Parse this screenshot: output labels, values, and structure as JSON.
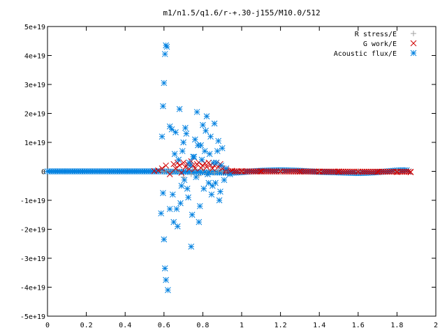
{
  "chart_data": {
    "type": "scatter",
    "title": "m1/n1.5/q1.6/r-+.30-j155/M10.0/512",
    "xlim": [
      0,
      2
    ],
    "ylim": [
      -5e+19,
      5e+19
    ],
    "x_ticks": [
      "0",
      "0.2",
      "0.4",
      "0.6",
      "0.8",
      "1",
      "1.2",
      "1.4",
      "1.6",
      "1.8",
      "2"
    ],
    "x_tick_values": [
      0,
      0.2,
      0.4,
      0.6,
      0.8,
      1.0,
      1.2,
      1.4,
      1.6,
      1.8,
      2.0
    ],
    "y_ticks": [
      "5e+19",
      "4e+19",
      "3e+19",
      "2e+19",
      "1e+19",
      "0",
      "-1e+19",
      "-2e+19",
      "-3e+19",
      "-4e+19",
      "-5e+19"
    ],
    "y_tick_values": [
      5e+19,
      4e+19,
      3e+19,
      2e+19,
      1e+19,
      0,
      -1e+19,
      -2e+19,
      -3e+19,
      -4e+19,
      -5e+19
    ],
    "grid": false,
    "legend_position": "top-right",
    "colors": {
      "r_stress": "#a0a0a0",
      "g_work": "#d00000",
      "acoustic_flux": "#0080e0"
    },
    "series": [
      {
        "name": "R stress/E",
        "marker": "plus",
        "x": [
          0.58,
          0.6,
          0.62,
          0.64,
          0.66,
          0.68,
          0.7,
          0.72,
          0.74,
          0.76,
          0.78,
          0.8,
          0.82,
          0.84,
          0.86,
          0.88,
          0.9,
          0.92,
          1.0,
          1.2,
          1.4,
          1.6,
          1.8
        ],
        "y": [
          1e+17,
          -2e+17,
          3e+17,
          -4e+17,
          5e+17,
          -3e+17,
          -2e+18,
          1e+18,
          -1e+18,
          8e+17,
          -1.5e+18,
          6e+17,
          -8e+17,
          4e+17,
          -5e+17,
          2e+17,
          -1e+17,
          5e+16,
          0,
          0,
          0,
          0,
          0
        ]
      },
      {
        "name": "G work/E",
        "marker": "cross",
        "x": [
          0.55,
          0.57,
          0.59,
          0.61,
          0.63,
          0.65,
          0.66,
          0.67,
          0.68,
          0.69,
          0.7,
          0.71,
          0.72,
          0.73,
          0.74,
          0.75,
          0.76,
          0.77,
          0.78,
          0.79,
          0.8,
          0.81,
          0.82,
          0.83,
          0.84,
          0.85,
          0.86,
          0.87,
          0.88,
          0.89,
          0.9,
          0.92,
          0.95,
          1.0,
          1.1,
          1.2,
          1.3,
          1.4,
          1.5,
          1.6,
          1.7,
          1.8,
          1.87
        ],
        "y": [
          1e+17,
          3e+17,
          1e+18,
          2e+18,
          -1e+18,
          2.5e+18,
          1e+18,
          3e+18,
          2e+18,
          -5e+17,
          3e+18,
          1.5e+18,
          2.5e+18,
          8e+17,
          3.5e+18,
          2e+18,
          1e+18,
          2.5e+18,
          3e+18,
          1.2e+18,
          2e+18,
          2.8e+18,
          1.5e+18,
          3e+18,
          2.2e+18,
          1e+18,
          2e+18,
          3e+18,
          1.5e+18,
          2.5e+18,
          1e+18,
          5e+17,
          2e+17,
          1e+17,
          0,
          -2e+16,
          -5e+16,
          -8e+16,
          -1e+17,
          -1.5e+17,
          -2e+17,
          -2.5e+17,
          -3e+17
        ]
      },
      {
        "name": "Acoustic flux/E",
        "marker": "asterisk",
        "x": [
          0.61,
          0.615,
          0.605,
          0.6,
          0.595,
          0.59,
          0.585,
          0.6,
          0.605,
          0.61,
          0.595,
          0.62,
          0.63,
          0.64,
          0.65,
          0.66,
          0.67,
          0.68,
          0.69,
          0.7,
          0.71,
          0.72,
          0.73,
          0.74,
          0.75,
          0.76,
          0.77,
          0.78,
          0.79,
          0.8,
          0.81,
          0.82,
          0.83,
          0.84,
          0.85,
          0.86,
          0.87,
          0.88,
          0.89,
          0.9,
          0.63,
          0.645,
          0.655,
          0.665,
          0.675,
          0.685,
          0.695,
          0.705,
          0.715,
          0.725,
          0.735,
          0.745,
          0.755,
          0.765,
          0.775,
          0.785,
          0.795,
          0.805,
          0.815,
          0.825,
          0.835,
          0.845,
          0.855,
          0.865,
          0.875,
          0.885,
          0.895,
          0.91,
          0.92,
          0.94
        ],
        "y": [
          4.35e+19,
          4.3e+19,
          4.05e+19,
          3.05e+19,
          2.25e+19,
          1.2e+19,
          -1.45e+19,
          -2.35e+19,
          -3.35e+19,
          -3.75e+19,
          -7.5e+18,
          -4.1e+19,
          -1.3e+19,
          1.45e+19,
          -1.75e+19,
          1.35e+19,
          -1.9e+19,
          2.15e+19,
          -5e+18,
          1e+19,
          1.5e+19,
          -6e+18,
          3e+18,
          -2.6e+19,
          5e+18,
          1.1e+19,
          2.05e+19,
          -1.75e+19,
          9e+18,
          1.6e+19,
          7e+18,
          1.9e+19,
          -4e+18,
          1.2e+19,
          -5e+18,
          1.65e+19,
          3e+18,
          1.05e+19,
          -7e+18,
          8e+18,
          1.55e+19,
          -8e+18,
          6e+18,
          -1.3e+19,
          4e+18,
          -1.1e+19,
          7e+18,
          -3e+18,
          1.3e+19,
          -9e+18,
          2e+18,
          -1.5e+19,
          5e+18,
          -2e+18,
          9e+18,
          -1.2e+19,
          4e+18,
          -6e+18,
          1.4e+19,
          -1e+18,
          6e+18,
          -8e+18,
          3e+18,
          -4e+18,
          7e+18,
          -1e+19,
          2e+18,
          -3e+18,
          1e+18,
          -1e+18
        ],
        "baseline_x": [
          0.0,
          0.05,
          0.1,
          0.15,
          0.2,
          0.25,
          0.3,
          0.35,
          0.4,
          0.45,
          0.5,
          0.55,
          0.57,
          0.95,
          1.0,
          1.05,
          1.1,
          1.15,
          1.2,
          1.25,
          1.3,
          1.35,
          1.4,
          1.45,
          1.5,
          1.55,
          1.6,
          1.65,
          1.7,
          1.75,
          1.8,
          1.85,
          1.87
        ],
        "baseline_y": [
          0,
          0,
          0,
          0,
          0,
          0,
          0,
          0,
          0,
          0,
          0,
          0,
          0,
          -5e+17,
          -3e+17,
          0,
          2e+17,
          3e+17,
          4e+17,
          3e+17,
          2e+17,
          0,
          -2e+17,
          -3e+17,
          -4e+17,
          -5e+17,
          -6e+17,
          -5e+17,
          -3e+17,
          0,
          3e+17,
          4e+17,
          -5e+17
        ]
      }
    ]
  }
}
